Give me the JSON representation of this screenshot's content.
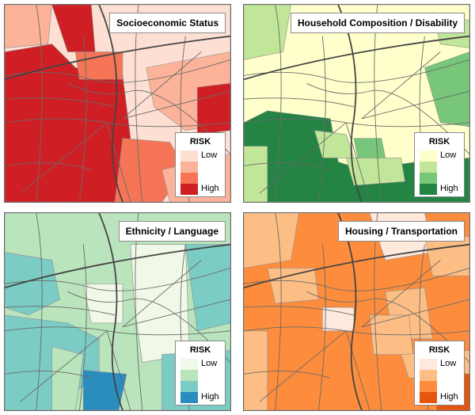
{
  "legend_title": "RISK",
  "legend_low": "Low",
  "legend_high": "High",
  "panels": [
    {
      "title": "Socioeconomic Status",
      "colors": [
        "#fde0d3",
        "#fcb39a",
        "#f67557",
        "#cf1f24"
      ]
    },
    {
      "title": "Household Composition / Disability",
      "colors": [
        "#ffffcc",
        "#c2e699",
        "#78c679",
        "#238443"
      ]
    },
    {
      "title": "Ethnicity / Language",
      "colors": [
        "#f0f9e8",
        "#bae4bc",
        "#7bccc4",
        "#2b8cbe"
      ]
    },
    {
      "title": "Housing / Transportation",
      "colors": [
        "#fee9dc",
        "#fdbe85",
        "#fd8d3c",
        "#e6550d"
      ]
    }
  ]
}
